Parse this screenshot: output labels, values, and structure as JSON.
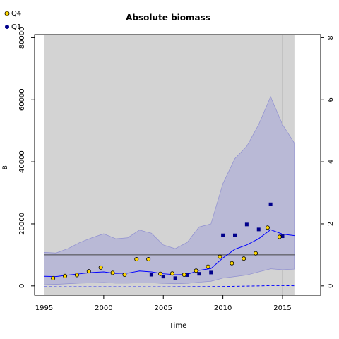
{
  "chart_data": {
    "type": "line",
    "title": "Absolute biomass",
    "xlabel": "Time",
    "ylabel": "B",
    "ylabel_sub": "t",
    "xlim": [
      1994.2,
      2018.2
    ],
    "ylim": [
      -3000,
      81000
    ],
    "x_ticks": [
      "1995",
      "2000",
      "2005",
      "2010",
      "2015"
    ],
    "y_ticks": [
      "0",
      "20000",
      "40000",
      "60000",
      "80000"
    ],
    "y2_ticks": [
      "0",
      "2",
      "4",
      "6",
      "8"
    ],
    "y2_scale": 10000,
    "reference_line": 10000,
    "projection_start": 2015,
    "shaded_region": [
      1995,
      2016
    ],
    "legend_placement": "top-left",
    "series": [
      {
        "name": "Q4",
        "kind": "points",
        "color": "#ffd700",
        "edge": "#000000",
        "x": [
          1995.75,
          1996.75,
          1997.75,
          1998.75,
          1999.75,
          2000.75,
          2001.75,
          2002.75,
          2003.75,
          2004.75,
          2005.75,
          2006.75,
          2007.75,
          2008.75,
          2009.75,
          2010.75,
          2011.75,
          2012.75,
          2013.75,
          2014.75
        ],
        "y": [
          2500,
          3200,
          3500,
          4700,
          5900,
          4200,
          3600,
          8600,
          8600,
          3900,
          4000,
          3600,
          4900,
          6200,
          9400,
          7300,
          8800,
          10500,
          18800,
          15800
        ]
      },
      {
        "name": "Q1",
        "kind": "points",
        "color": "#00008b",
        "x": [
          2004,
          2005,
          2006,
          2007,
          2008,
          2009,
          2010,
          2011,
          2012,
          2013,
          2014,
          2015
        ],
        "y": [
          3600,
          3000,
          2500,
          3500,
          3900,
          4300,
          16300,
          16300,
          19800,
          18200,
          26300,
          16000
        ]
      },
      {
        "name": "",
        "kind": "line",
        "color": "#0000ff",
        "x": [
          1995,
          1996,
          1997,
          1998,
          1999,
          2000,
          2001,
          2002,
          2003,
          2004,
          2005,
          2006,
          2007,
          2008,
          2009,
          2010,
          2011,
          2012,
          2013,
          2014,
          2015,
          2016
        ],
        "y": [
          3100,
          3000,
          3500,
          3900,
          4300,
          4500,
          4000,
          4100,
          4800,
          4500,
          3900,
          3600,
          3700,
          5000,
          5600,
          9000,
          11800,
          13200,
          15200,
          18100,
          16700,
          16200
        ]
      },
      {
        "name": "",
        "kind": "band",
        "color": "#b9b9d6",
        "x": [
          1995,
          1996,
          1997,
          1998,
          1999,
          2000,
          2001,
          2002,
          2003,
          2004,
          2005,
          2006,
          2007,
          2008,
          2009,
          2010,
          2011,
          2012,
          2013,
          2014,
          2015,
          2016
        ],
        "upper": [
          10800,
          10600,
          12000,
          14000,
          15500,
          16800,
          15200,
          15500,
          18000,
          17000,
          13200,
          12000,
          14000,
          19000,
          20000,
          33000,
          41000,
          45000,
          52000,
          61000,
          52000,
          46000
        ],
        "lower": [
          600,
          500,
          700,
          900,
          1000,
          1100,
          900,
          900,
          1000,
          1000,
          800,
          700,
          800,
          1200,
          1500,
          2500,
          3000,
          3500,
          4500,
          5500,
          5200,
          5400
        ]
      },
      {
        "name": "",
        "kind": "dashed",
        "color": "#0000ff",
        "x": [
          1995,
          2000,
          2005,
          2010,
          2013,
          2014,
          2015,
          2016
        ],
        "y": [
          -300,
          -300,
          -300,
          -200,
          0,
          100,
          100,
          50
        ]
      }
    ]
  }
}
